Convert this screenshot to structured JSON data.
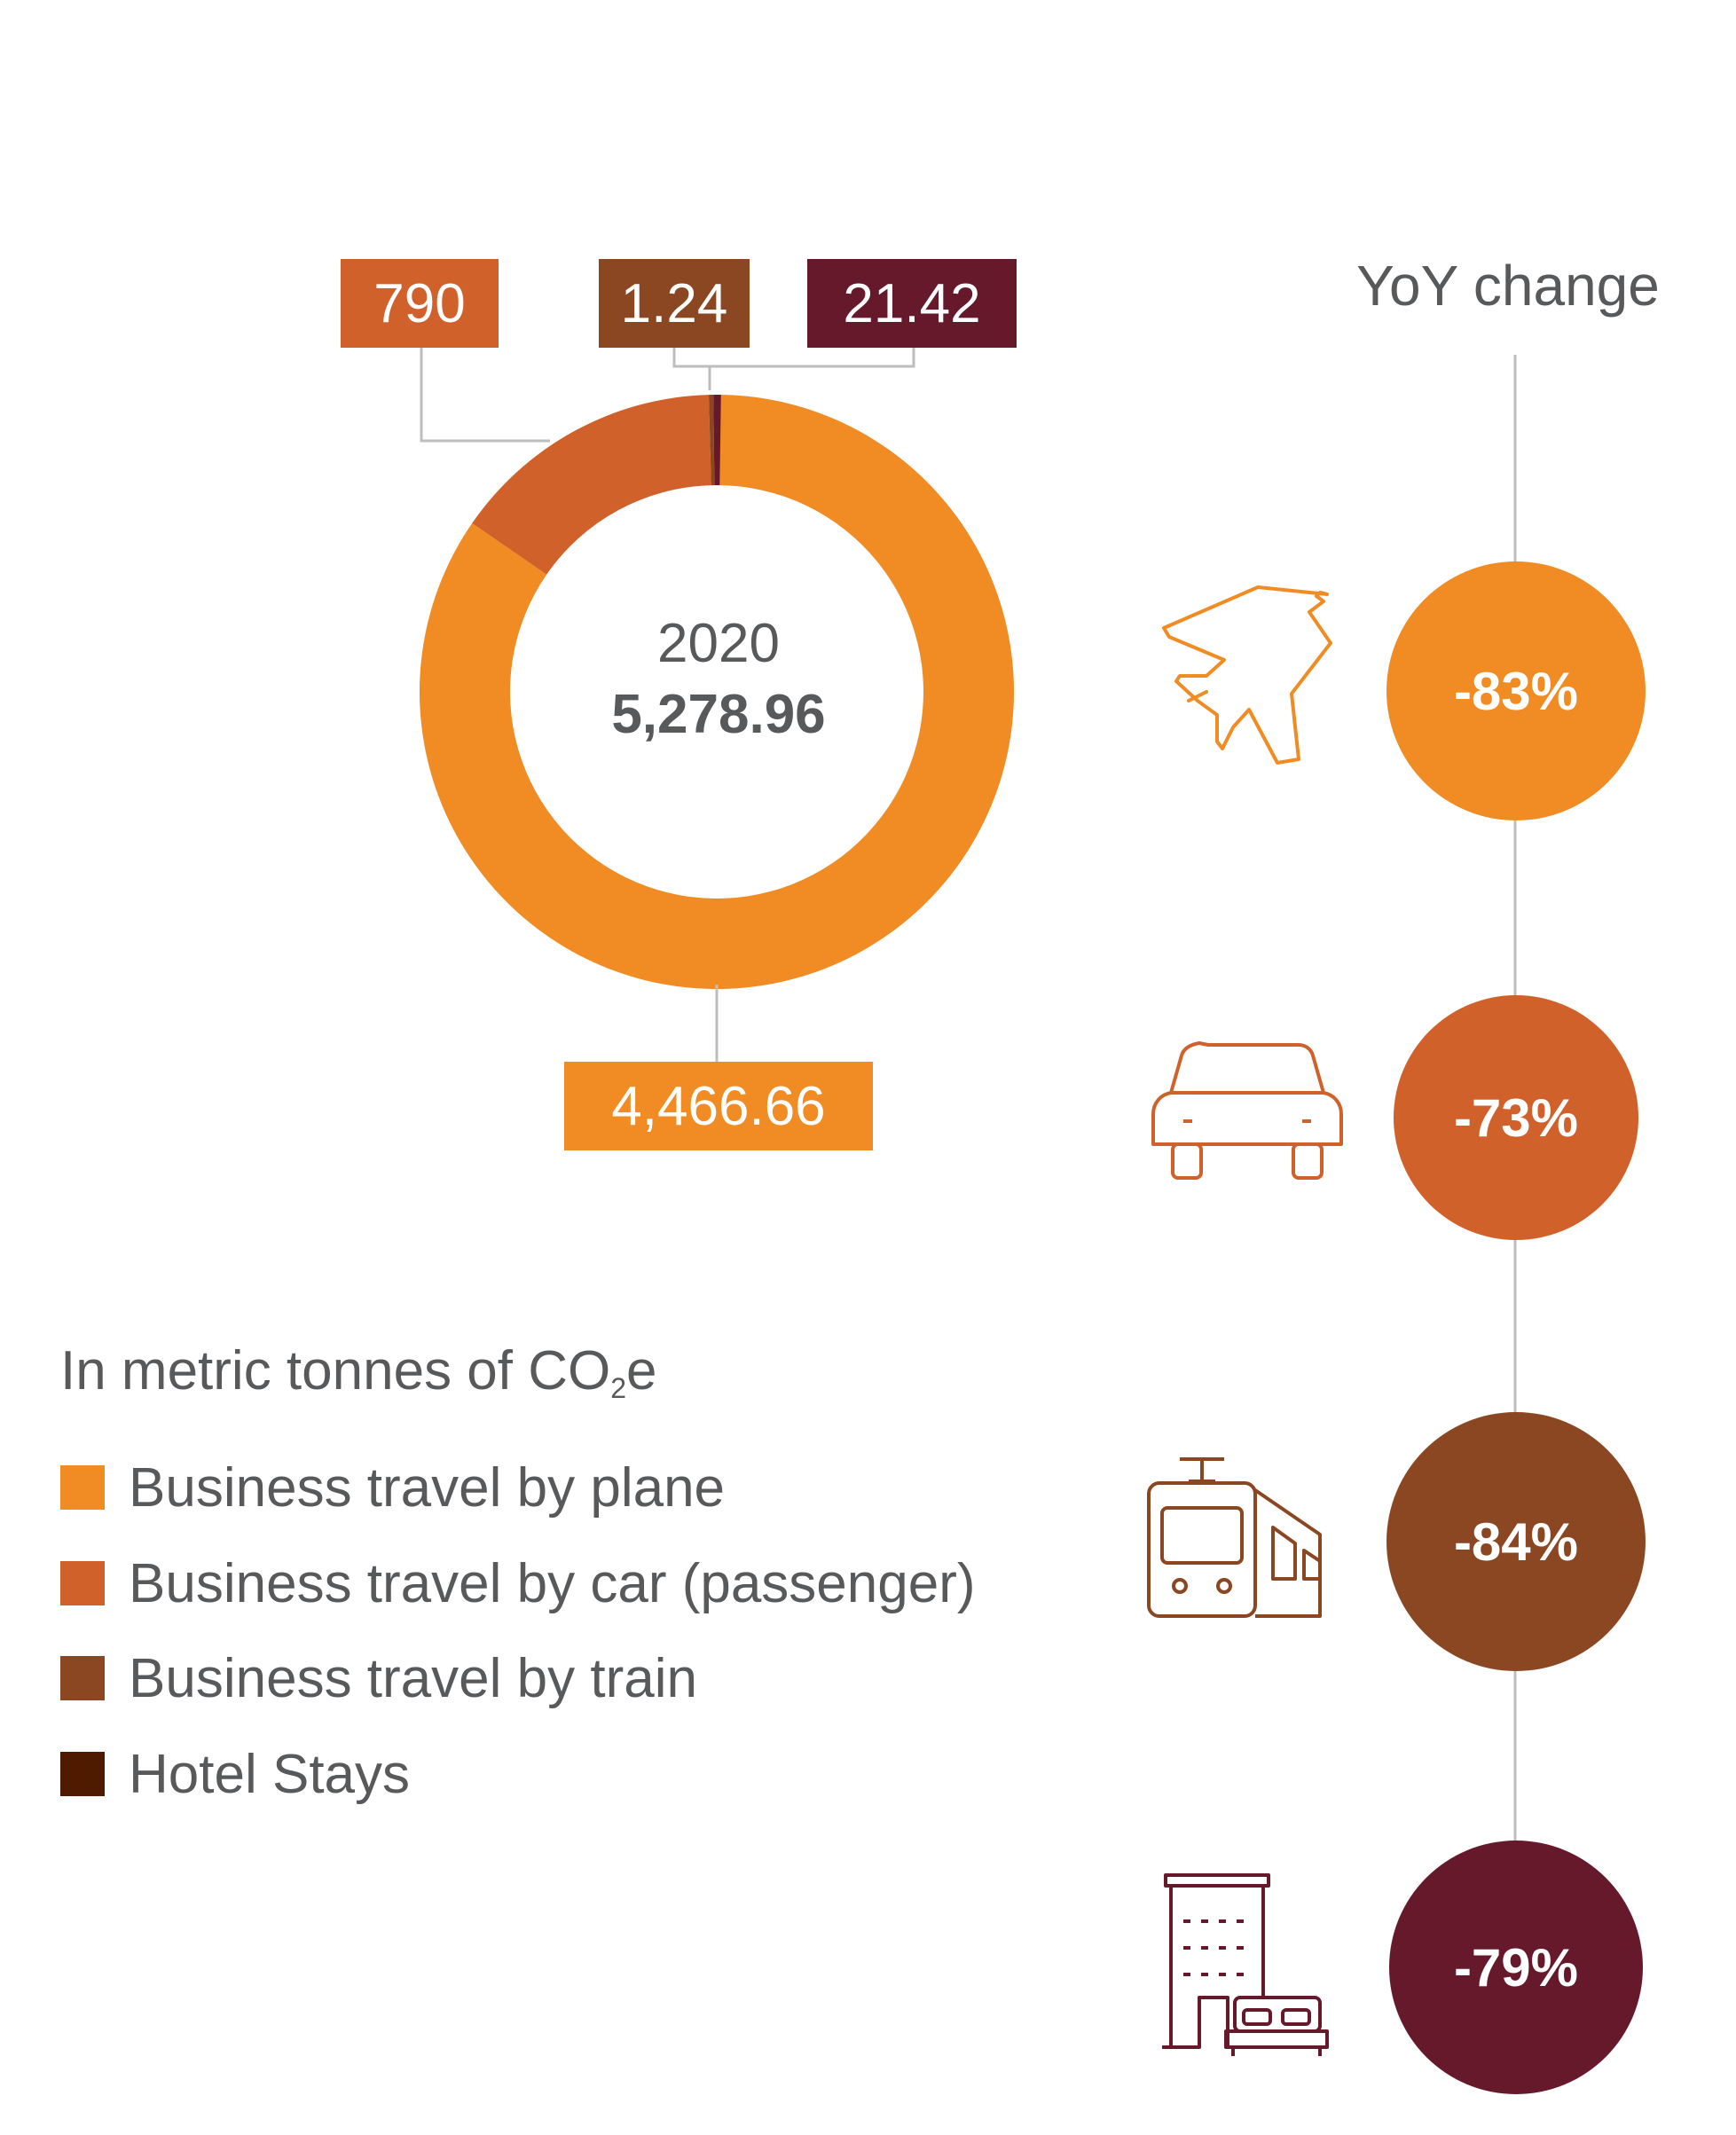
{
  "chart_data": {
    "type": "pie",
    "center": {
      "year": "2020",
      "total": "5,278.96"
    },
    "slices": [
      {
        "name": "Business travel by plane",
        "value": 4466.66,
        "label": "4,466.66",
        "color": "#f08c23",
        "yoy": "-83%"
      },
      {
        "name": "Business travel by car (passenger)",
        "value": 790,
        "label": "790",
        "color": "#d0612a",
        "yoy": "-73%"
      },
      {
        "name": "Business travel by train",
        "value": 1.24,
        "label": "1.24",
        "color": "#8b4722",
        "yoy": "-84%"
      },
      {
        "name": "Hotel Stays",
        "value": 21.42,
        "label": "21.42",
        "color": "#65192b",
        "yoy": "-79%"
      }
    ],
    "legend_title": "In metric tonnes of CO",
    "legend_title_sub": "2",
    "legend_title_tail": "e",
    "yoy_title": "YoY change"
  },
  "colors": {
    "text": "#58595b",
    "connector": "#bcbec0",
    "legend_hotel_swatch": "#4e1a00"
  },
  "icons": [
    "airplane-icon",
    "car-icon",
    "train-icon",
    "hotel-icon"
  ]
}
